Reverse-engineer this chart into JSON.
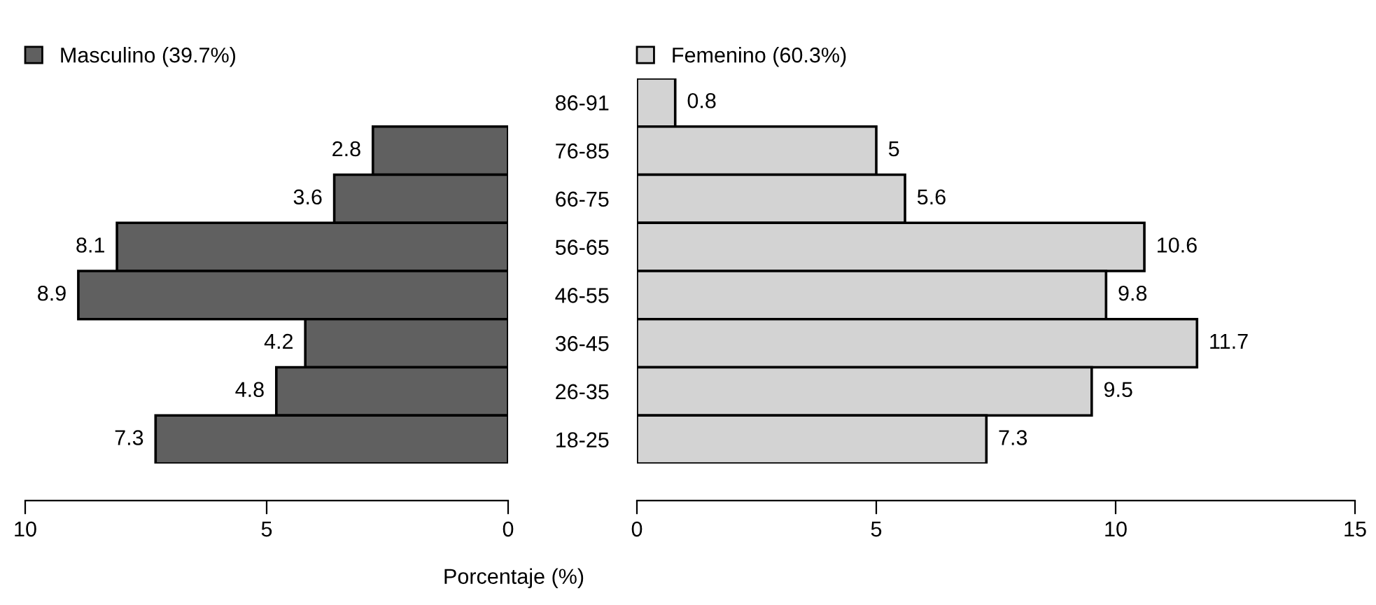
{
  "chart_data": [
    {
      "type": "bar",
      "orientation": "horizontal",
      "categories": [
        "86-91",
        "76-85",
        "66-75",
        "56-65",
        "46-55",
        "36-45",
        "26-35",
        "18-25"
      ],
      "series": [
        {
          "name": "Masculino (39.7%)",
          "color": "#606060",
          "values": [
            null,
            2.8,
            3.6,
            8.1,
            8.9,
            4.2,
            4.8,
            7.3
          ]
        }
      ],
      "xlim": [
        10,
        0
      ],
      "xticks": [
        10,
        5,
        0
      ],
      "xlabel": "Porcentaje (%)",
      "data_labels": true,
      "legend": "top left",
      "grid": false
    },
    {
      "type": "bar",
      "orientation": "horizontal",
      "categories": [
        null,
        null,
        null,
        null,
        null,
        null,
        null,
        null
      ],
      "series": [
        {
          "name": "Femenino (60.3%)",
          "color": "#d3d3d3",
          "values": [
            0.8,
            5,
            5.6,
            10.6,
            9.8,
            11.7,
            9.5,
            7.3
          ]
        }
      ],
      "xlim": [
        0,
        15
      ],
      "xticks": [
        0,
        5,
        10,
        15
      ],
      "data_labels": true,
      "legend": "top left",
      "grid": false,
      "tick_labels": "x"
    }
  ]
}
